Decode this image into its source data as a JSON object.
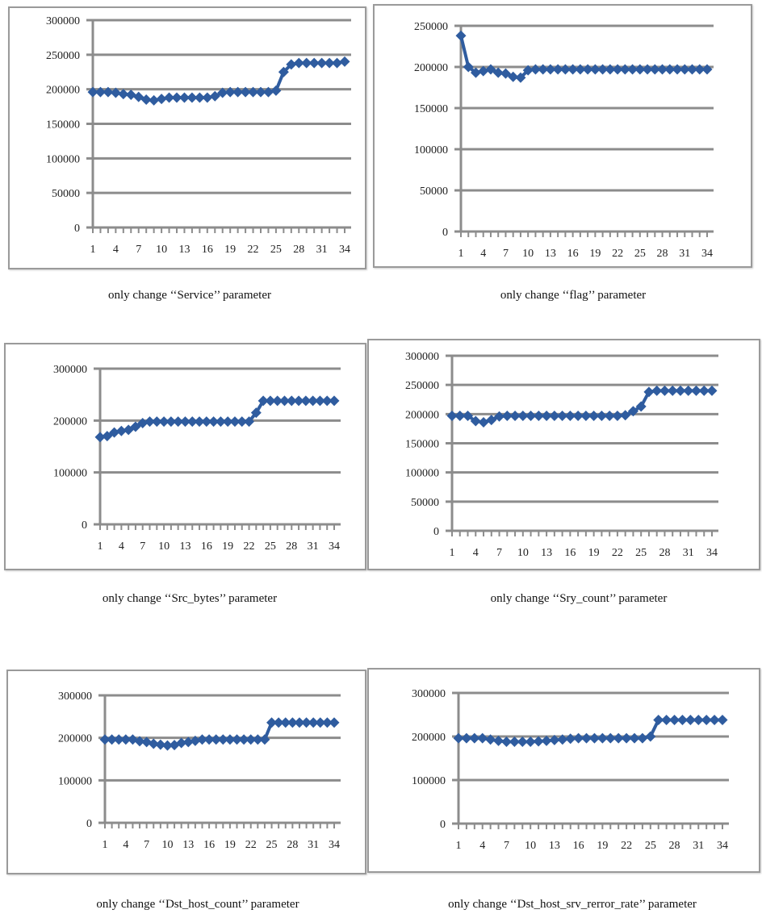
{
  "chart_data": [
    {
      "type": "line",
      "caption": "only change ‘‘Service’’ parameter",
      "ylim": [
        0,
        300000
      ],
      "yticks": [
        0,
        50000,
        100000,
        150000,
        200000,
        250000,
        300000
      ],
      "x": [
        1,
        2,
        3,
        4,
        5,
        6,
        7,
        8,
        9,
        10,
        11,
        12,
        13,
        14,
        15,
        16,
        17,
        18,
        19,
        20,
        21,
        22,
        23,
        24,
        25,
        26,
        27,
        28,
        29,
        30,
        31,
        32,
        33,
        34
      ],
      "xtick_labels": [
        "1",
        "4",
        "7",
        "10",
        "13",
        "16",
        "19",
        "22",
        "25",
        "28",
        "31",
        "34"
      ],
      "values": [
        196000,
        196000,
        196000,
        195000,
        193000,
        192000,
        189000,
        185000,
        184000,
        186000,
        188000,
        188000,
        188000,
        188000,
        188000,
        188000,
        190000,
        195000,
        196000,
        196000,
        196000,
        196000,
        196000,
        196000,
        198000,
        225000,
        236000,
        238000,
        238000,
        238000,
        238000,
        238000,
        238000,
        240000
      ],
      "marker": "diamond",
      "color": "#2f5c9f",
      "grid": true
    },
    {
      "type": "line",
      "caption": "only change ‘‘flag’’ parameter",
      "ylim": [
        0,
        250000
      ],
      "yticks": [
        0,
        50000,
        100000,
        150000,
        200000,
        250000
      ],
      "x": [
        1,
        2,
        3,
        4,
        5,
        6,
        7,
        8,
        9,
        10,
        11,
        12,
        13,
        14,
        15,
        16,
        17,
        18,
        19,
        20,
        21,
        22,
        23,
        24,
        25,
        26,
        27,
        28,
        29,
        30,
        31,
        32,
        33,
        34
      ],
      "xtick_labels": [
        "1",
        "4",
        "7",
        "10",
        "13",
        "16",
        "19",
        "22",
        "25",
        "28",
        "31",
        "34"
      ],
      "values": [
        238000,
        200000,
        193000,
        195000,
        197000,
        193000,
        192000,
        188000,
        187000,
        196000,
        197000,
        197000,
        197000,
        197000,
        197000,
        197000,
        197000,
        197000,
        197000,
        197000,
        197000,
        197000,
        197000,
        197000,
        197000,
        197000,
        197000,
        197000,
        197000,
        197000,
        197000,
        197000,
        197000,
        197000
      ],
      "marker": "diamond",
      "color": "#2f5c9f",
      "grid": true
    },
    {
      "type": "line",
      "caption": "only change ‘‘Src_bytes’’ parameter",
      "ylim": [
        0,
        300000
      ],
      "yticks": [
        0,
        100000,
        200000,
        300000
      ],
      "x": [
        1,
        2,
        3,
        4,
        5,
        6,
        7,
        8,
        9,
        10,
        11,
        12,
        13,
        14,
        15,
        16,
        17,
        18,
        19,
        20,
        21,
        22,
        23,
        24,
        25,
        26,
        27,
        28,
        29,
        30,
        31,
        32,
        33,
        34
      ],
      "xtick_labels": [
        "1",
        "4",
        "7",
        "10",
        "13",
        "16",
        "19",
        "22",
        "25",
        "28",
        "31",
        "34"
      ],
      "values": [
        168000,
        170000,
        177000,
        180000,
        182000,
        188000,
        195000,
        198000,
        198000,
        198000,
        198000,
        198000,
        198000,
        198000,
        198000,
        198000,
        198000,
        198000,
        198000,
        198000,
        198000,
        198000,
        215000,
        238000,
        238000,
        238000,
        238000,
        238000,
        238000,
        238000,
        238000,
        238000,
        238000,
        238000
      ],
      "marker": "diamond",
      "color": "#2f5c9f",
      "grid": true
    },
    {
      "type": "line",
      "caption": "only change ‘‘Sry_count’’ parameter",
      "ylim": [
        0,
        300000
      ],
      "yticks": [
        0,
        50000,
        100000,
        150000,
        200000,
        250000,
        300000
      ],
      "x": [
        1,
        2,
        3,
        4,
        5,
        6,
        7,
        8,
        9,
        10,
        11,
        12,
        13,
        14,
        15,
        16,
        17,
        18,
        19,
        20,
        21,
        22,
        23,
        24,
        25,
        26,
        27,
        28,
        29,
        30,
        31,
        32,
        33,
        34
      ],
      "xtick_labels": [
        "1",
        "4",
        "7",
        "10",
        "13",
        "16",
        "19",
        "22",
        "25",
        "28",
        "31",
        "34"
      ],
      "values": [
        197000,
        197000,
        197000,
        188000,
        186000,
        190000,
        196000,
        197000,
        197000,
        197000,
        197000,
        197000,
        197000,
        197000,
        197000,
        197000,
        197000,
        197000,
        197000,
        197000,
        197000,
        197000,
        198000,
        205000,
        213000,
        238000,
        240000,
        240000,
        240000,
        240000,
        240000,
        240000,
        240000,
        240000
      ],
      "marker": "diamond",
      "color": "#2f5c9f",
      "grid": true
    },
    {
      "type": "line",
      "caption": "only change ‘‘Dst_host_count’’ parameter",
      "ylim": [
        0,
        300000
      ],
      "yticks": [
        0,
        100000,
        200000,
        300000
      ],
      "x": [
        1,
        2,
        3,
        4,
        5,
        6,
        7,
        8,
        9,
        10,
        11,
        12,
        13,
        14,
        15,
        16,
        17,
        18,
        19,
        20,
        21,
        22,
        23,
        24,
        25,
        26,
        27,
        28,
        29,
        30,
        31,
        32,
        33,
        34
      ],
      "xtick_labels": [
        "1",
        "4",
        "7",
        "10",
        "13",
        "16",
        "19",
        "22",
        "25",
        "28",
        "31",
        "34"
      ],
      "values": [
        196000,
        196000,
        196000,
        196000,
        196000,
        192000,
        190000,
        186000,
        184000,
        182000,
        183000,
        188000,
        190000,
        193000,
        196000,
        196000,
        196000,
        196000,
        196000,
        196000,
        196000,
        196000,
        196000,
        196000,
        236000,
        236000,
        236000,
        236000,
        236000,
        236000,
        236000,
        236000,
        236000,
        236000
      ],
      "marker": "diamond",
      "color": "#2f5c9f",
      "grid": true
    },
    {
      "type": "line",
      "caption": "only change ‘‘Dst_host_srv_rerror_rate’’ parameter",
      "ylim": [
        0,
        300000
      ],
      "yticks": [
        0,
        100000,
        200000,
        300000
      ],
      "x": [
        1,
        2,
        3,
        4,
        5,
        6,
        7,
        8,
        9,
        10,
        11,
        12,
        13,
        14,
        15,
        16,
        17,
        18,
        19,
        20,
        21,
        22,
        23,
        24,
        25,
        26,
        27,
        28,
        29,
        30,
        31,
        32,
        33,
        34
      ],
      "xtick_labels": [
        "1",
        "4",
        "7",
        "10",
        "13",
        "16",
        "19",
        "22",
        "25",
        "28",
        "31",
        "34"
      ],
      "values": [
        196000,
        196000,
        196000,
        196000,
        193000,
        190000,
        188000,
        188000,
        188000,
        188000,
        189000,
        190000,
        192000,
        193000,
        195000,
        196000,
        196000,
        196000,
        196000,
        196000,
        196000,
        196000,
        196000,
        196000,
        200000,
        238000,
        238000,
        238000,
        238000,
        238000,
        238000,
        238000,
        238000,
        238000
      ],
      "marker": "diamond",
      "color": "#2f5c9f",
      "grid": true
    }
  ]
}
